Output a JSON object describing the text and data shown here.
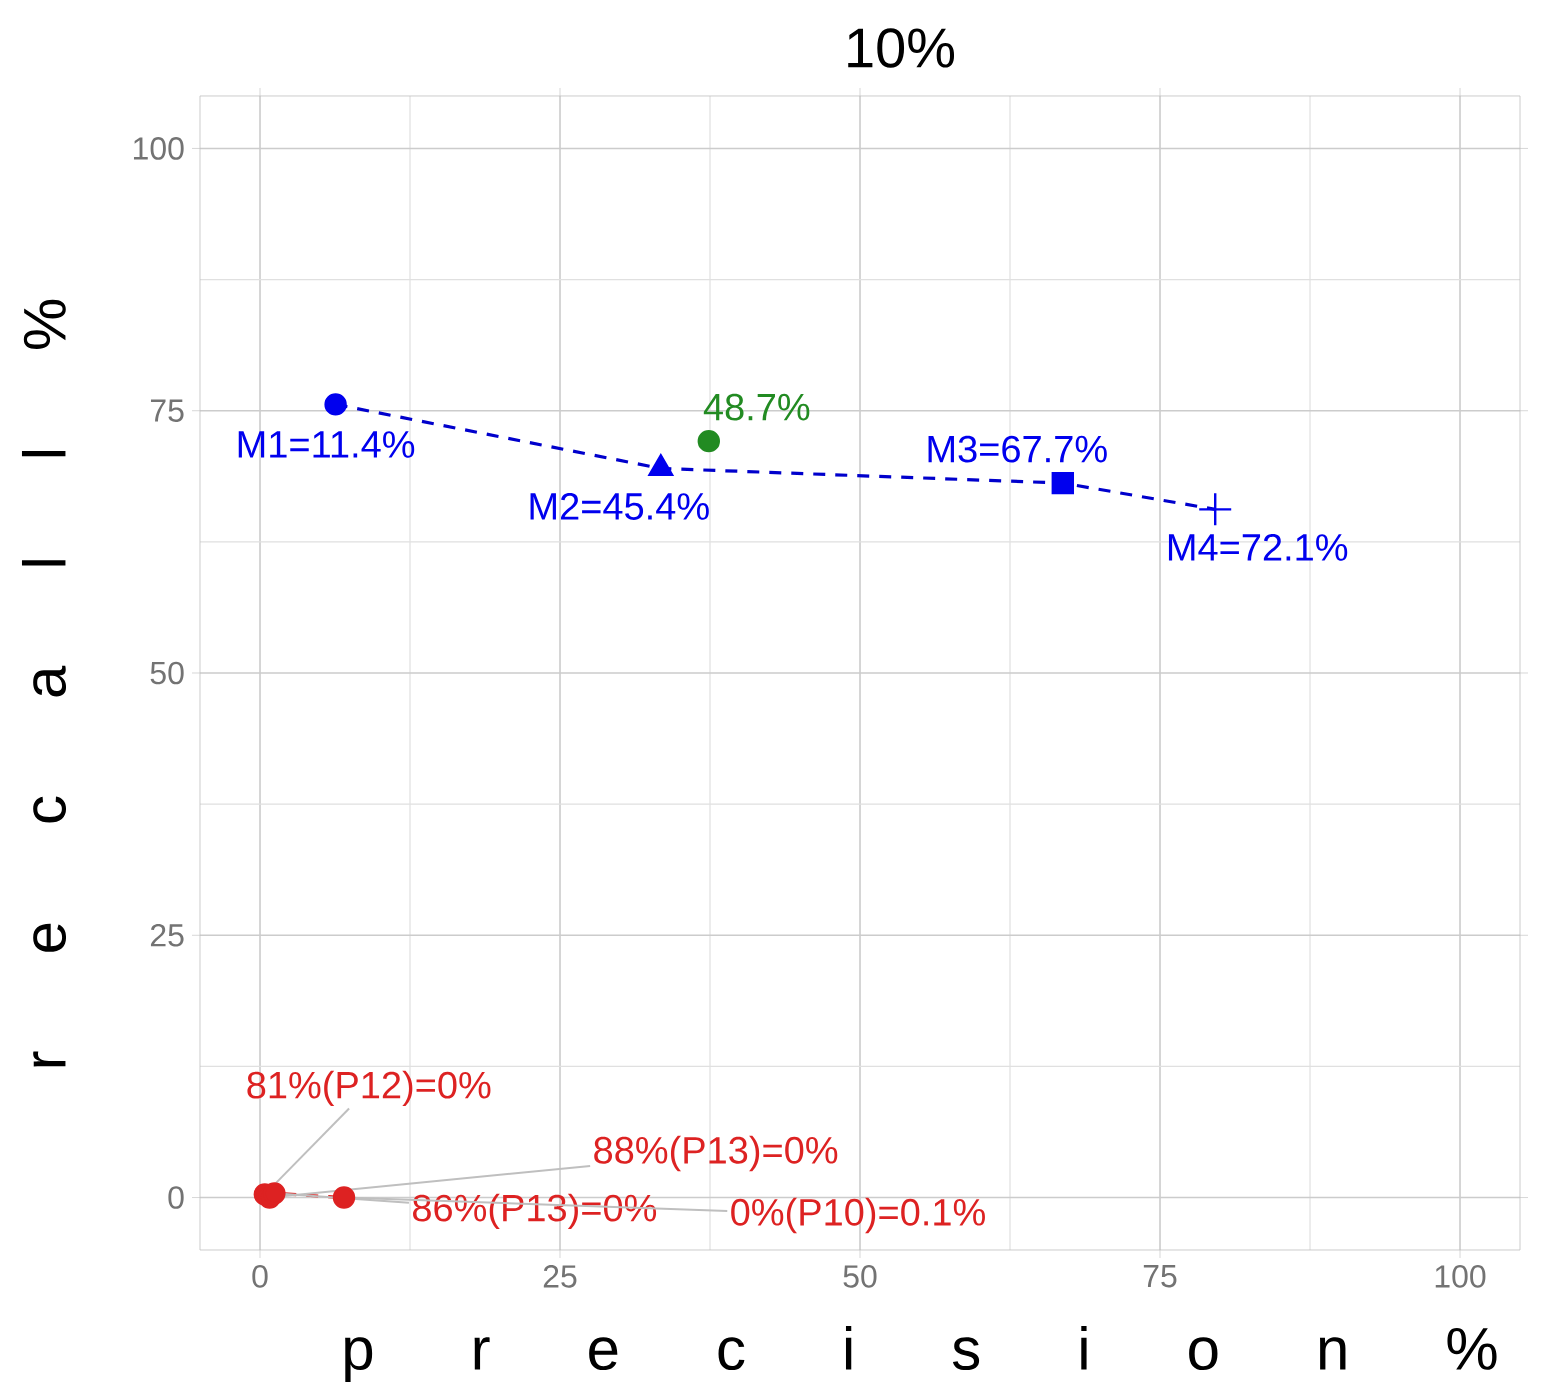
{
  "chart_data": {
    "type": "scatter",
    "title": "10%",
    "xlabel": "p r e c i s i o n %",
    "ylabel": "r e c a l l %",
    "xlim": [
      -5,
      105
    ],
    "ylim": [
      -5,
      105
    ],
    "xticks": [
      0,
      25,
      50,
      75,
      100
    ],
    "yticks": [
      0,
      25,
      50,
      75,
      100
    ],
    "grid": true,
    "series": [
      {
        "type": "line",
        "color": "#0000cc",
        "line_style": "dashed",
        "marker": "none",
        "x": [
          6.3,
          33.4,
          66.9,
          79.6
        ],
        "values": [
          75.6,
          69.5,
          68.1,
          65.6
        ]
      },
      {
        "color": "#0000ee",
        "marker": "circle",
        "x": [
          6.3
        ],
        "values": [
          75.6
        ]
      },
      {
        "color": "#0000ee",
        "marker": "triangle",
        "x": [
          33.4
        ],
        "values": [
          69.5
        ]
      },
      {
        "color": "#0000ee",
        "marker": "square",
        "x": [
          66.9
        ],
        "values": [
          68.1
        ]
      },
      {
        "color": "#0000ee",
        "marker": "cross",
        "x": [
          79.6
        ],
        "values": [
          65.6
        ]
      },
      {
        "color": "#228b22",
        "marker": "circle",
        "x": [
          37.4
        ],
        "values": [
          72.1
        ]
      },
      {
        "type": "line",
        "color": "#dd2222",
        "line_style": "dashed",
        "marker": "none",
        "x": [
          0.4,
          0.8,
          1.2,
          7
        ],
        "values": [
          0.3,
          0,
          0.4,
          0
        ]
      },
      {
        "color": "#dd2222",
        "marker": "circle",
        "x": [
          0.4,
          0.8,
          1.2,
          7
        ],
        "values": [
          0.3,
          0,
          0.4,
          0
        ]
      }
    ],
    "annotations": [
      {
        "text": "M1=11.4%",
        "x": 6.3,
        "y": 75.6
      },
      {
        "text": "M2=45.4%",
        "x": 33.4,
        "y": 69.5
      },
      {
        "text": "48.7%",
        "x": 37.4,
        "y": 72.1
      },
      {
        "text": "M3=67.7%",
        "x": 66.9,
        "y": 68.1
      },
      {
        "text": "M4=72.1%",
        "x": 79.6,
        "y": 65.6
      },
      {
        "text": "81%(P12)=0%",
        "x": 0.4,
        "y": 0.3
      },
      {
        "text": "88%(P13)=0%",
        "x": 0.8,
        "y": 0
      },
      {
        "text": "86%(P13)=0%",
        "x": 1.2,
        "y": 0.4
      },
      {
        "text": "0%(P10)=0.1%",
        "x": 7,
        "y": 0
      }
    ]
  }
}
